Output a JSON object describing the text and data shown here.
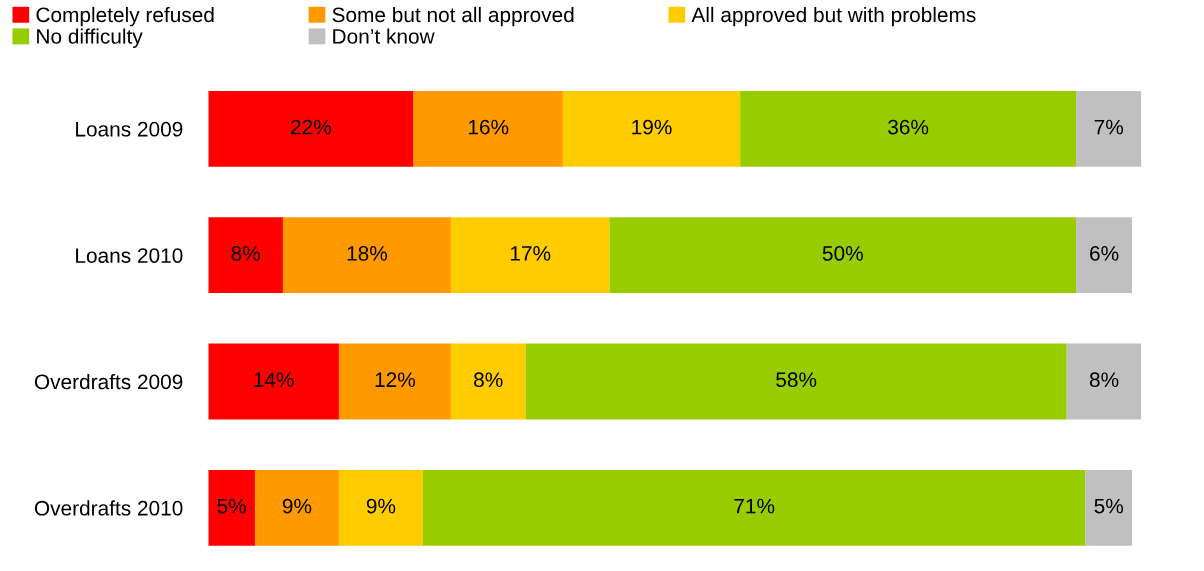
{
  "chart_data": {
    "type": "bar",
    "orientation": "horizontal",
    "stacked": true,
    "legend": "top",
    "categories": [
      "Loans 2009",
      "Loans 2010",
      "Overdrafts 2009",
      "Overdrafts 2010"
    ],
    "series": [
      {
        "name": "Completely refused",
        "color": "#ff0000",
        "values": [
          22,
          8,
          14,
          5
        ],
        "value_labels": [
          "22%",
          "8%",
          "14%",
          "5%"
        ]
      },
      {
        "name": "Some but not all approved",
        "color": "#ff9900",
        "values": [
          16,
          18,
          12,
          9
        ],
        "value_labels": [
          "16%",
          "18%",
          "12%",
          "9%"
        ]
      },
      {
        "name": "All approved but with problems",
        "color": "#ffcc00",
        "values": [
          19,
          17,
          8,
          9
        ],
        "value_labels": [
          "19%",
          "17%",
          "8%",
          "9%"
        ]
      },
      {
        "name": "No difficulty",
        "color": "#99cc00",
        "values": [
          36,
          50,
          58,
          71
        ],
        "value_labels": [
          "36%",
          "50%",
          "58%",
          "71%"
        ]
      },
      {
        "name": "Don’t know",
        "color": "#c0c0c0",
        "values": [
          7,
          6,
          8,
          5
        ],
        "value_labels": [
          "7%",
          "6%",
          "8%",
          "5%"
        ]
      }
    ]
  }
}
